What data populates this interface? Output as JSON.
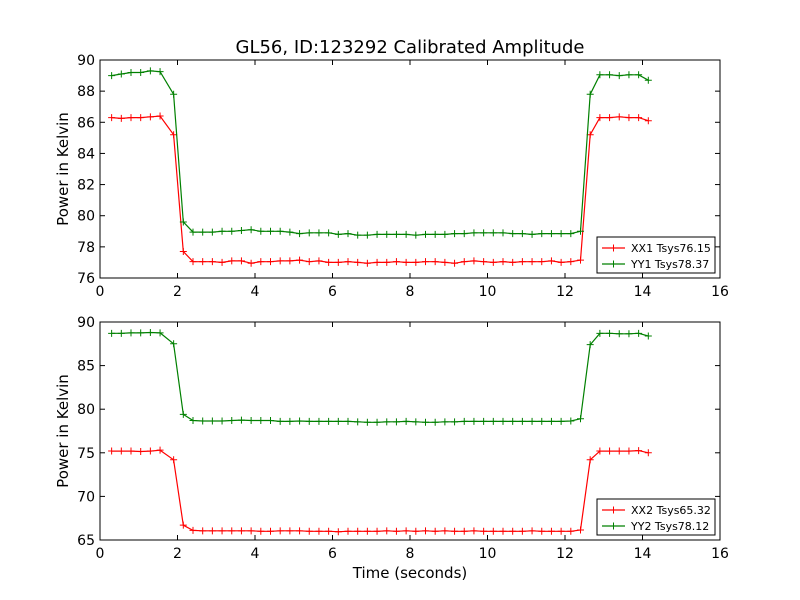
{
  "figure": {
    "title": "GL56, ID:123292 Calibrated Amplitude",
    "xlabel": "Time (seconds)"
  },
  "chart_data": [
    {
      "type": "line",
      "ylabel": "Power in Kelvin",
      "xlim": [
        0,
        16
      ],
      "ylim": [
        76,
        90
      ],
      "xticks": [
        0,
        2,
        4,
        6,
        8,
        10,
        12,
        14,
        16
      ],
      "yticks": [
        76,
        78,
        80,
        82,
        84,
        86,
        88,
        90
      ],
      "legend_position": "lower-right",
      "marker": "+",
      "x": [
        0.3,
        0.55,
        0.8,
        1.05,
        1.3,
        1.55,
        1.9,
        2.15,
        2.4,
        2.65,
        2.9,
        3.15,
        3.4,
        3.65,
        3.9,
        4.15,
        4.4,
        4.65,
        4.9,
        5.15,
        5.4,
        5.65,
        5.9,
        6.15,
        6.4,
        6.65,
        6.9,
        7.15,
        7.4,
        7.65,
        7.9,
        8.15,
        8.4,
        8.65,
        8.9,
        9.15,
        9.4,
        9.65,
        9.9,
        10.15,
        10.4,
        10.65,
        10.9,
        11.15,
        11.4,
        11.65,
        11.9,
        12.15,
        12.4,
        12.65,
        12.9,
        13.15,
        13.4,
        13.65,
        13.9,
        14.15
      ],
      "series": [
        {
          "name": "XX1 Tsys76.15",
          "color": "#ff0000",
          "values": [
            86.3,
            86.25,
            86.3,
            86.3,
            86.35,
            86.4,
            85.2,
            77.7,
            77.05,
            77.05,
            77.05,
            77.0,
            77.1,
            77.1,
            76.95,
            77.05,
            77.05,
            77.1,
            77.1,
            77.15,
            77.05,
            77.1,
            77.0,
            77.0,
            77.05,
            77.0,
            76.95,
            77.0,
            77.0,
            77.05,
            77.0,
            77.0,
            77.05,
            77.05,
            77.0,
            76.95,
            77.05,
            77.1,
            77.05,
            77.0,
            77.05,
            77.0,
            77.05,
            77.05,
            77.05,
            77.1,
            77.0,
            77.05,
            77.15,
            85.2,
            86.3,
            86.3,
            86.35,
            86.3,
            86.3,
            86.1
          ]
        },
        {
          "name": "YY1 Tsys78.37",
          "color": "#008000",
          "values": [
            89.0,
            89.1,
            89.2,
            89.2,
            89.3,
            89.25,
            87.8,
            79.6,
            78.95,
            78.95,
            78.95,
            79.0,
            79.0,
            79.05,
            79.1,
            79.0,
            79.0,
            79.0,
            78.95,
            78.85,
            78.9,
            78.9,
            78.9,
            78.8,
            78.85,
            78.75,
            78.75,
            78.8,
            78.8,
            78.8,
            78.8,
            78.75,
            78.8,
            78.8,
            78.8,
            78.85,
            78.85,
            78.9,
            78.9,
            78.9,
            78.9,
            78.85,
            78.85,
            78.8,
            78.85,
            78.85,
            78.85,
            78.85,
            79.0,
            87.8,
            89.05,
            89.05,
            89.0,
            89.05,
            89.05,
            88.7
          ]
        }
      ]
    },
    {
      "type": "line",
      "ylabel": "Power in Kelvin",
      "xlim": [
        0,
        16
      ],
      "ylim": [
        65,
        90
      ],
      "xticks": [
        0,
        2,
        4,
        6,
        8,
        10,
        12,
        14,
        16
      ],
      "yticks": [
        65,
        70,
        75,
        80,
        85,
        90
      ],
      "legend_position": "lower-right",
      "marker": "+",
      "x": [
        0.3,
        0.55,
        0.8,
        1.05,
        1.3,
        1.55,
        1.9,
        2.15,
        2.4,
        2.65,
        2.9,
        3.15,
        3.4,
        3.65,
        3.9,
        4.15,
        4.4,
        4.65,
        4.9,
        5.15,
        5.4,
        5.65,
        5.9,
        6.15,
        6.4,
        6.65,
        6.9,
        7.15,
        7.4,
        7.65,
        7.9,
        8.15,
        8.4,
        8.65,
        8.9,
        9.15,
        9.4,
        9.65,
        9.9,
        10.15,
        10.4,
        10.65,
        10.9,
        11.15,
        11.4,
        11.65,
        11.9,
        12.15,
        12.4,
        12.65,
        12.9,
        13.15,
        13.4,
        13.65,
        13.9,
        14.15
      ],
      "series": [
        {
          "name": "XX2 Tsys65.32",
          "color": "#ff0000",
          "values": [
            75.2,
            75.2,
            75.2,
            75.15,
            75.2,
            75.3,
            74.2,
            66.7,
            66.1,
            66.05,
            66.05,
            66.05,
            66.05,
            66.05,
            66.05,
            66.0,
            66.0,
            66.05,
            66.05,
            66.05,
            66.0,
            66.0,
            66.0,
            65.95,
            66.0,
            66.0,
            66.0,
            66.0,
            66.05,
            66.0,
            66.05,
            66.0,
            66.05,
            66.0,
            66.05,
            66.0,
            66.0,
            66.05,
            66.0,
            66.0,
            66.0,
            66.0,
            66.0,
            66.05,
            66.0,
            66.0,
            66.0,
            66.0,
            66.15,
            74.2,
            75.2,
            75.2,
            75.2,
            75.2,
            75.25,
            75.0
          ]
        },
        {
          "name": "YY2 Tsys78.12",
          "color": "#008000",
          "values": [
            88.7,
            88.7,
            88.75,
            88.75,
            88.8,
            88.75,
            87.5,
            79.4,
            78.7,
            78.65,
            78.65,
            78.65,
            78.7,
            78.75,
            78.7,
            78.7,
            78.7,
            78.6,
            78.6,
            78.65,
            78.6,
            78.6,
            78.6,
            78.6,
            78.6,
            78.55,
            78.5,
            78.5,
            78.55,
            78.55,
            78.6,
            78.55,
            78.5,
            78.5,
            78.55,
            78.55,
            78.6,
            78.6,
            78.6,
            78.6,
            78.6,
            78.6,
            78.6,
            78.6,
            78.6,
            78.6,
            78.6,
            78.65,
            78.9,
            87.4,
            88.7,
            88.7,
            88.65,
            88.65,
            88.7,
            88.4
          ]
        }
      ]
    }
  ]
}
